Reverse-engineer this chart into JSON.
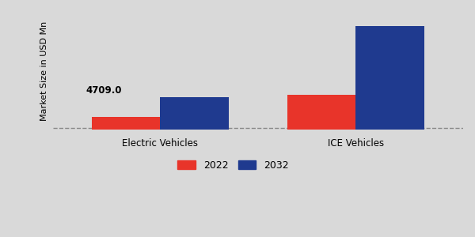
{
  "categories": [
    "Electric Vehicles",
    "ICE Vehicles"
  ],
  "values_2022": [
    1800,
    5000
  ],
  "values_2032": [
    4709,
    15000
  ],
  "annotation_text": "4709.0",
  "color_2022": "#e8342a",
  "color_2032": "#1f3a8f",
  "ylabel": "Market Size in USD Mn",
  "legend_labels": [
    "2022",
    "2032"
  ],
  "bar_width": 0.35,
  "background_color": "#d9d9d9",
  "plot_bg_color": "#d9d9d9",
  "ylim": [
    0,
    17000
  ],
  "xlim": [
    -0.55,
    1.55
  ]
}
